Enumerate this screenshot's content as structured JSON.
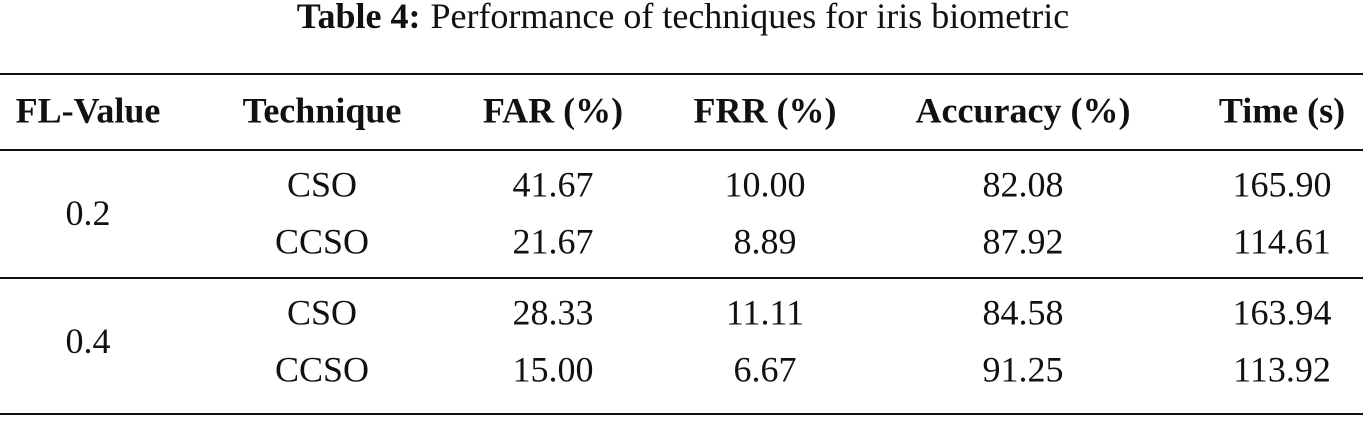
{
  "caption": {
    "label": "Table 4:",
    "text": "Performance of techniques for iris biometric"
  },
  "table": {
    "headers": [
      "FL-Value",
      "Technique",
      "FAR (%)",
      "FRR (%)",
      "Accuracy (%)",
      "Time (s)"
    ],
    "groups": [
      {
        "fl_value": "0.2",
        "rows": [
          [
            "CSO",
            "41.67",
            "10.00",
            "82.08",
            "165.90"
          ],
          [
            "CCSO",
            "21.67",
            "8.89",
            "87.92",
            "114.61"
          ]
        ]
      },
      {
        "fl_value": "0.4",
        "rows": [
          [
            "CSO",
            "28.33",
            "11.11",
            "84.58",
            "163.94"
          ],
          [
            "CCSO",
            "15.00",
            "6.67",
            "91.25",
            "113.92"
          ]
        ]
      }
    ]
  }
}
